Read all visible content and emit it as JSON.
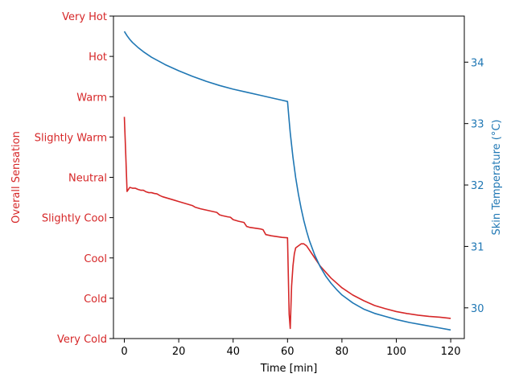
{
  "chart_data": {
    "type": "line",
    "xlabel": "Time [min]",
    "ylabel_left": "Overall Sensation",
    "ylabel_right": "Skin Temperature (°C)",
    "xlim": [
      -4,
      125
    ],
    "xticks": [
      0,
      20,
      40,
      60,
      80,
      100,
      120
    ],
    "y_left_ticks": [
      "Very Cold",
      "Cold",
      "Cool",
      "Slightly Cool",
      "Neutral",
      "Slightly Warm",
      "Warm",
      "Hot",
      "Very Hot"
    ],
    "y_left_range": [
      -4,
      4
    ],
    "y_right_lim": [
      29.5,
      34.75
    ],
    "y_right_ticks": [
      30,
      31,
      32,
      33,
      34
    ],
    "colors": {
      "left": "#d62728",
      "right": "#1f77b4",
      "axes": "#000000"
    },
    "series": [
      {
        "axis": "left",
        "x": [
          0,
          0.5,
          1,
          1.5,
          2,
          3,
          4,
          5,
          6,
          7,
          8,
          9,
          10,
          11,
          12,
          13,
          14,
          16,
          18,
          20,
          22,
          24,
          25,
          26,
          28,
          30,
          32,
          34,
          35,
          36,
          38,
          39,
          40,
          42,
          44,
          45,
          46,
          48,
          50,
          51,
          52,
          54,
          56,
          58,
          60,
          60.6,
          61,
          61.5,
          62,
          62.5,
          63,
          64,
          65,
          66,
          67,
          68,
          70,
          72,
          74,
          76,
          78,
          80,
          84,
          88,
          92,
          96,
          100,
          104,
          108,
          112,
          116,
          120
        ],
        "y": [
          1.5,
          0.6,
          -0.35,
          -0.3,
          -0.25,
          -0.27,
          -0.27,
          -0.3,
          -0.32,
          -0.32,
          -0.36,
          -0.38,
          -0.38,
          -0.4,
          -0.41,
          -0.45,
          -0.48,
          -0.52,
          -0.56,
          -0.6,
          -0.64,
          -0.68,
          -0.7,
          -0.74,
          -0.78,
          -0.81,
          -0.84,
          -0.87,
          -0.93,
          -0.95,
          -0.98,
          -0.99,
          -1.05,
          -1.09,
          -1.12,
          -1.22,
          -1.24,
          -1.26,
          -1.28,
          -1.3,
          -1.42,
          -1.45,
          -1.47,
          -1.49,
          -1.5,
          -3.4,
          -3.75,
          -2.7,
          -2.2,
          -1.9,
          -1.75,
          -1.7,
          -1.65,
          -1.65,
          -1.7,
          -1.8,
          -2.0,
          -2.2,
          -2.35,
          -2.5,
          -2.62,
          -2.74,
          -2.92,
          -3.06,
          -3.18,
          -3.26,
          -3.33,
          -3.38,
          -3.42,
          -3.45,
          -3.47,
          -3.5
        ]
      },
      {
        "axis": "right",
        "x": [
          0,
          1,
          2,
          3,
          5,
          7,
          10,
          15,
          20,
          25,
          30,
          35,
          40,
          45,
          50,
          55,
          58,
          60,
          60.5,
          61,
          62,
          63,
          64,
          65,
          66,
          67,
          68,
          70,
          72,
          74,
          76,
          78,
          80,
          84,
          88,
          92,
          96,
          100,
          105,
          110,
          115,
          120
        ],
        "y": [
          34.5,
          34.43,
          34.37,
          34.32,
          34.24,
          34.17,
          34.08,
          33.96,
          33.86,
          33.77,
          33.69,
          33.62,
          33.56,
          33.51,
          33.46,
          33.41,
          33.38,
          33.36,
          33.1,
          32.85,
          32.45,
          32.12,
          31.85,
          31.62,
          31.42,
          31.25,
          31.1,
          30.86,
          30.67,
          30.52,
          30.4,
          30.3,
          30.21,
          30.08,
          29.98,
          29.91,
          29.86,
          29.81,
          29.76,
          29.72,
          29.68,
          29.64
        ]
      }
    ]
  }
}
